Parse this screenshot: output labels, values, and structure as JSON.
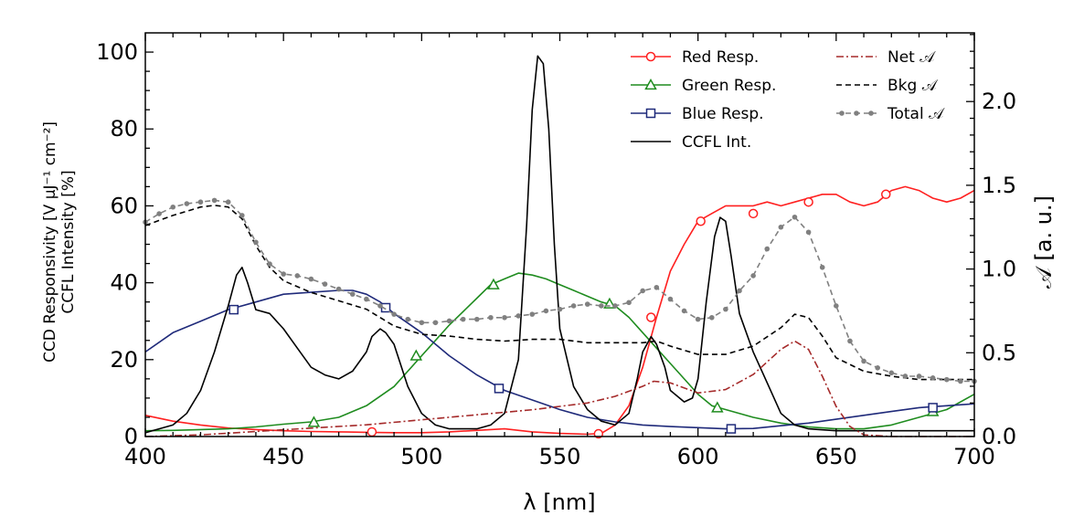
{
  "chart_data": {
    "type": "line",
    "xlabel": "λ [nm]",
    "ylabel_left": [
      "CCD Responsivity [V μJ⁻¹ cm⁻²]",
      "CCFL Intensity [%]"
    ],
    "ylabel_right": "𝒜 [a. u.]",
    "xlim": [
      400,
      700
    ],
    "ylim_left": [
      0,
      105
    ],
    "ylim_right": [
      0,
      2.41
    ],
    "x_ticks": [
      400,
      450,
      500,
      550,
      600,
      650,
      700
    ],
    "y_ticks_left": [
      0,
      20,
      40,
      60,
      80,
      100
    ],
    "y_ticks_right": [
      "0.0",
      "0.5",
      "1.0",
      "1.5",
      "2.0"
    ],
    "y_ticks_right_values": [
      0,
      0.5,
      1.0,
      1.5,
      2.0
    ],
    "legend_position": "top-right",
    "series": [
      {
        "name": "Red Resp.",
        "axis": "left",
        "color": "#ff2020",
        "dash": "solid",
        "marker": "circle",
        "x": [
          400,
          410,
          420,
          430,
          440,
          450,
          460,
          470,
          480,
          490,
          500,
          510,
          520,
          530,
          540,
          550,
          560,
          565,
          570,
          575,
          580,
          585,
          590,
          595,
          600,
          605,
          610,
          615,
          620,
          625,
          630,
          635,
          640,
          645,
          650,
          655,
          660,
          665,
          670,
          675,
          680,
          685,
          690,
          695,
          700
        ],
        "y": [
          5.5,
          4,
          3,
          2.2,
          1.8,
          1.5,
          1.3,
          1.2,
          1.1,
          1.0,
          1.0,
          1.2,
          1.6,
          2.0,
          1.2,
          0.8,
          0.6,
          0.8,
          3,
          8,
          18,
          31,
          43,
          50,
          56,
          58,
          60,
          60,
          60,
          61,
          60,
          61,
          62,
          63,
          63,
          61,
          60,
          61,
          64,
          65,
          64,
          62,
          61,
          62,
          64
        ],
        "marker_x": [
          482,
          564,
          583,
          601,
          620,
          640,
          668
        ],
        "marker_y": [
          1.2,
          0.7,
          31,
          56,
          58,
          61,
          63
        ]
      },
      {
        "name": "Green Resp.",
        "axis": "left",
        "color": "#1f8c1f",
        "dash": "solid",
        "marker": "triangle",
        "x": [
          400,
          410,
          420,
          430,
          440,
          450,
          460,
          470,
          480,
          490,
          500,
          510,
          520,
          525,
          530,
          535,
          540,
          545,
          550,
          555,
          560,
          565,
          570,
          575,
          580,
          585,
          590,
          595,
          600,
          605,
          610,
          620,
          630,
          640,
          650,
          660,
          670,
          680,
          690,
          700
        ],
        "y": [
          1.5,
          1.6,
          1.8,
          2.0,
          2.5,
          3.2,
          3.8,
          5,
          8,
          13,
          21,
          29,
          36,
          39.5,
          41,
          42.5,
          42,
          41,
          39.5,
          38,
          36.5,
          35,
          34,
          31,
          27,
          23,
          19,
          15,
          11,
          8,
          7,
          5,
          3.5,
          2.5,
          2,
          2,
          3,
          5,
          7,
          11
        ],
        "marker_x": [
          461,
          498,
          526,
          568,
          607,
          685
        ],
        "marker_y": [
          3.7,
          21,
          39.5,
          34.5,
          7.5,
          6.5
        ]
      },
      {
        "name": "Blue Resp.",
        "axis": "left",
        "color": "#1f2a7a",
        "dash": "solid",
        "marker": "square",
        "x": [
          400,
          410,
          420,
          430,
          440,
          450,
          460,
          470,
          475,
          480,
          485,
          490,
          500,
          510,
          520,
          530,
          540,
          550,
          560,
          570,
          580,
          590,
          600,
          610,
          620,
          630,
          640,
          650,
          660,
          670,
          680,
          690,
          700
        ],
        "y": [
          22,
          27,
          30,
          33,
          35,
          37,
          37.5,
          38,
          38,
          37,
          35,
          32,
          27,
          21,
          16,
          12,
          9.5,
          7,
          5,
          3.8,
          3,
          2.6,
          2.3,
          2,
          2.1,
          2.8,
          3.5,
          4.5,
          5.5,
          6.5,
          7.5,
          8,
          8.5
        ],
        "marker_x": [
          432,
          487,
          528,
          612,
          685
        ],
        "marker_y": [
          33,
          33.5,
          12.5,
          2,
          7.5
        ]
      },
      {
        "name": "CCFL Int.",
        "axis": "left",
        "color": "#000000",
        "dash": "solid",
        "marker": "none",
        "x": [
          400,
          405,
          410,
          415,
          420,
          425,
          430,
          433,
          435,
          437,
          440,
          445,
          450,
          455,
          460,
          465,
          470,
          475,
          480,
          482,
          485,
          487,
          490,
          495,
          500,
          505,
          510,
          515,
          520,
          525,
          530,
          535,
          538,
          540,
          542,
          544,
          546,
          548,
          550,
          555,
          560,
          565,
          570,
          575,
          578,
          580,
          583,
          585,
          588,
          590,
          595,
          598,
          600,
          603,
          606,
          608,
          610,
          612,
          615,
          620,
          625,
          630,
          635,
          640,
          650,
          660,
          670,
          680,
          690,
          700
        ],
        "y": [
          1,
          2,
          3,
          6,
          12,
          22,
          34,
          42,
          44,
          40,
          33,
          32,
          28,
          23,
          18,
          16,
          15,
          17,
          22,
          26,
          28,
          27,
          24,
          13,
          6,
          3,
          2,
          2,
          2,
          3,
          6,
          20,
          55,
          85,
          99,
          97,
          80,
          50,
          28,
          13,
          7,
          4,
          3,
          6,
          15,
          22,
          26,
          24,
          18,
          12,
          9,
          10,
          15,
          35,
          52,
          57,
          56,
          47,
          32,
          22,
          14,
          6,
          3,
          2,
          1.5,
          1.5,
          1.5,
          1.5,
          1.5,
          1.5
        ]
      },
      {
        "name": "Net 𝒜",
        "axis": "right",
        "color": "#a52a2a",
        "dash": "dashdot",
        "marker": "none",
        "x": [
          400,
          420,
          440,
          460,
          480,
          500,
          520,
          540,
          560,
          570,
          580,
          584,
          590,
          600,
          610,
          620,
          630,
          635,
          640,
          645,
          650,
          655,
          660,
          670,
          680,
          690,
          700
        ],
        "y": [
          0.0,
          0.01,
          0.03,
          0.05,
          0.07,
          0.1,
          0.13,
          0.16,
          0.2,
          0.24,
          0.3,
          0.33,
          0.32,
          0.26,
          0.28,
          0.37,
          0.52,
          0.57,
          0.52,
          0.36,
          0.18,
          0.06,
          0.01,
          0,
          0,
          0,
          0
        ]
      },
      {
        "name": "Bkg 𝒜",
        "axis": "right",
        "color": "#000000",
        "dash": "dashed",
        "marker": "none",
        "x": [
          400,
          410,
          420,
          425,
          430,
          435,
          440,
          445,
          450,
          460,
          470,
          480,
          490,
          500,
          510,
          520,
          530,
          540,
          550,
          560,
          570,
          580,
          585,
          590,
          600,
          610,
          620,
          630,
          635,
          640,
          645,
          650,
          660,
          670,
          680,
          690,
          700
        ],
        "y": [
          1.26,
          1.32,
          1.37,
          1.38,
          1.37,
          1.3,
          1.14,
          1.01,
          0.93,
          0.86,
          0.81,
          0.76,
          0.66,
          0.61,
          0.6,
          0.58,
          0.57,
          0.58,
          0.58,
          0.56,
          0.56,
          0.56,
          0.57,
          0.54,
          0.49,
          0.49,
          0.54,
          0.65,
          0.73,
          0.71,
          0.6,
          0.47,
          0.39,
          0.36,
          0.34,
          0.34,
          0.34
        ]
      },
      {
        "name": "Total 𝒜",
        "axis": "right",
        "color": "#808080",
        "dash": "dashed",
        "marker": "dot",
        "x": [
          400,
          405,
          410,
          415,
          420,
          425,
          430,
          435,
          440,
          445,
          450,
          455,
          460,
          465,
          470,
          475,
          480,
          485,
          490,
          495,
          500,
          505,
          510,
          515,
          520,
          525,
          530,
          535,
          540,
          545,
          550,
          555,
          560,
          565,
          570,
          575,
          580,
          585,
          590,
          595,
          600,
          605,
          610,
          615,
          620,
          625,
          630,
          635,
          640,
          645,
          650,
          655,
          660,
          665,
          670,
          675,
          680,
          685,
          690,
          695,
          700
        ],
        "y": [
          1.28,
          1.33,
          1.37,
          1.39,
          1.4,
          1.41,
          1.4,
          1.32,
          1.16,
          1.03,
          0.97,
          0.96,
          0.94,
          0.91,
          0.88,
          0.85,
          0.82,
          0.78,
          0.73,
          0.7,
          0.68,
          0.68,
          0.69,
          0.7,
          0.7,
          0.71,
          0.71,
          0.72,
          0.73,
          0.75,
          0.76,
          0.78,
          0.79,
          0.78,
          0.78,
          0.8,
          0.87,
          0.89,
          0.82,
          0.75,
          0.7,
          0.71,
          0.76,
          0.87,
          0.96,
          1.12,
          1.25,
          1.31,
          1.22,
          1.01,
          0.78,
          0.57,
          0.45,
          0.41,
          0.38,
          0.36,
          0.36,
          0.35,
          0.34,
          0.33,
          0.33
        ]
      }
    ]
  }
}
